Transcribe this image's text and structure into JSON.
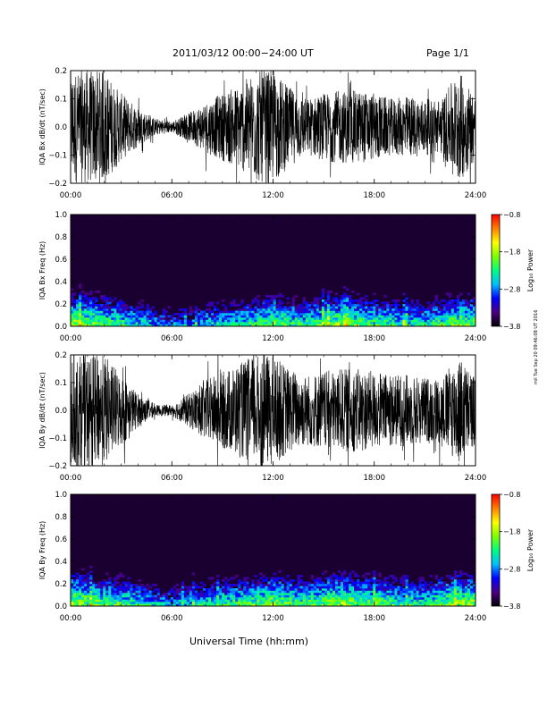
{
  "header": {
    "title": "2011/03/12  00:00−24:00 UT",
    "page": "Page 1/1"
  },
  "footer": {
    "xaxis_title": "Universal Time (hh:mm)",
    "side_stamp": "mil Tue Sep 20 09:46:08 UT 2016"
  },
  "colors": {
    "trace": "#000000",
    "spectrogram_background": "#1a0030",
    "colorscale": [
      "#000000",
      "#4b0082",
      "#0000ff",
      "#00bfff",
      "#00ff7f",
      "#7fff00",
      "#ffff00",
      "#ff7f00",
      "#ff0000"
    ]
  },
  "chart_data": [
    {
      "type": "line",
      "title": "",
      "ylabel": "IQA Bx dB/dt (nT/sec)",
      "xlabel": "",
      "xlim": [
        "00:00",
        "24:00"
      ],
      "ylim": [
        -0.2,
        0.2
      ],
      "x_ticks": [
        "00:00",
        "06:00",
        "12:00",
        "18:00",
        "24:00"
      ],
      "y_ticks": [
        "0.2",
        "0.1",
        "0.0",
        "−0.1",
        "−0.2"
      ],
      "series": [
        {
          "x_hours": [
            0,
            1,
            2,
            3,
            4,
            5,
            6,
            7,
            8,
            9,
            10,
            11,
            12,
            13,
            14,
            15,
            16,
            17,
            18,
            19,
            20,
            21,
            22,
            23,
            24
          ],
          "envelope_amplitude": [
            0.2,
            0.2,
            0.2,
            0.12,
            0.07,
            0.03,
            0.02,
            0.05,
            0.09,
            0.12,
            0.15,
            0.2,
            0.2,
            0.14,
            0.1,
            0.12,
            0.13,
            0.13,
            0.12,
            0.1,
            0.11,
            0.1,
            0.1,
            0.2,
            0.12
          ]
        }
      ]
    },
    {
      "type": "heatmap",
      "title": "",
      "ylabel": "IQA Bx Freq (Hz)",
      "xlabel": "",
      "xlim": [
        "00:00",
        "24:00"
      ],
      "ylim": [
        0.0,
        1.0
      ],
      "x_ticks": [
        "00:00",
        "06:00",
        "12:00",
        "18:00",
        "24:00"
      ],
      "y_ticks": [
        "1.0",
        "0.8",
        "0.6",
        "0.4",
        "0.2",
        "0.0"
      ],
      "colorbar": {
        "label": "Log₁₀ Power",
        "ticks": [
          "−0.8",
          "−1.8",
          "−2.8",
          "−3.8"
        ],
        "range": [
          -3.8,
          -0.8
        ]
      },
      "low_freq_power_by_hour": [
        -1.8,
        -1.9,
        -2.0,
        -2.2,
        -2.4,
        -2.6,
        -2.8,
        -2.7,
        -2.5,
        -2.4,
        -2.3,
        -2.2,
        -1.9,
        -2.1,
        -2.2,
        -2.0,
        -1.9,
        -2.0,
        -2.1,
        -2.2,
        -2.3,
        -2.3,
        -2.1,
        -1.9,
        -2.0
      ]
    },
    {
      "type": "line",
      "title": "",
      "ylabel": "IQA By dB/dt (nT/sec)",
      "xlabel": "",
      "xlim": [
        "00:00",
        "24:00"
      ],
      "ylim": [
        -0.2,
        0.2
      ],
      "x_ticks": [
        "00:00",
        "06:00",
        "12:00",
        "18:00",
        "24:00"
      ],
      "y_ticks": [
        "0.2",
        "0.1",
        "0.0",
        "−0.1",
        "−0.2"
      ],
      "series": [
        {
          "x_hours": [
            0,
            1,
            2,
            3,
            4,
            5,
            6,
            7,
            8,
            9,
            10,
            11,
            12,
            13,
            14,
            15,
            16,
            17,
            18,
            19,
            20,
            21,
            22,
            23,
            24
          ],
          "envelope_amplitude": [
            0.2,
            0.2,
            0.2,
            0.13,
            0.06,
            0.02,
            0.02,
            0.06,
            0.11,
            0.14,
            0.17,
            0.2,
            0.2,
            0.15,
            0.13,
            0.14,
            0.15,
            0.15,
            0.14,
            0.13,
            0.13,
            0.12,
            0.12,
            0.2,
            0.12
          ]
        }
      ]
    },
    {
      "type": "heatmap",
      "title": "",
      "ylabel": "IQA By Freq (Hz)",
      "xlabel": "",
      "xlim": [
        "00:00",
        "24:00"
      ],
      "ylim": [
        0.0,
        1.0
      ],
      "x_ticks": [
        "00:00",
        "06:00",
        "12:00",
        "18:00",
        "24:00"
      ],
      "y_ticks": [
        "1.0",
        "0.8",
        "0.6",
        "0.4",
        "0.2",
        "0.0"
      ],
      "colorbar": {
        "label": "Log₁₀ Power",
        "ticks": [
          "−0.8",
          "−1.8",
          "−2.8",
          "−3.8"
        ],
        "range": [
          -3.8,
          -0.8
        ]
      },
      "low_freq_power_by_hour": [
        -1.7,
        -1.9,
        -2.0,
        -2.1,
        -2.3,
        -2.5,
        -2.7,
        -2.5,
        -2.3,
        -2.2,
        -2.1,
        -2.0,
        -1.9,
        -2.0,
        -2.1,
        -1.9,
        -1.8,
        -1.9,
        -2.0,
        -2.1,
        -2.2,
        -2.2,
        -2.0,
        -1.8,
        -1.9
      ]
    }
  ]
}
